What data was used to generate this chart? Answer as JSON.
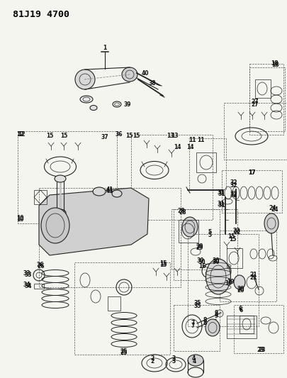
{
  "title": "81J19 4700",
  "bg_color": "#f5f5f0",
  "fig_width": 4.06,
  "fig_height": 5.33,
  "dpi": 100,
  "lc": "#222222",
  "lw_main": 0.8,
  "lw_thin": 0.5,
  "lw_dash": 0.5,
  "label_fontsize": 5.5,
  "title_fontsize": 9.5
}
